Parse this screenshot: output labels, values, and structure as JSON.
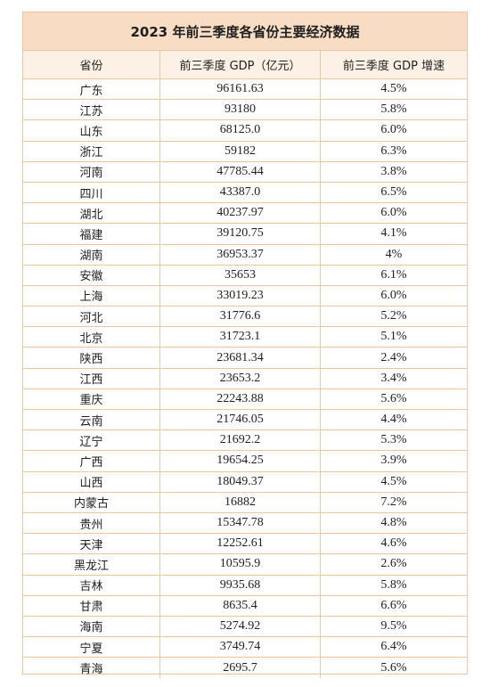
{
  "chart_data": {
    "type": "table",
    "title": "2023 年前三季度各省份主要经济数据",
    "columns": [
      "省份",
      "前三季度 GDP（亿元）",
      "前三季度 GDP 增速"
    ],
    "rows": [
      [
        "广东",
        "96161.63",
        "4.5%"
      ],
      [
        "江苏",
        "93180",
        "5.8%"
      ],
      [
        "山东",
        "68125.0",
        "6.0%"
      ],
      [
        "浙江",
        "59182",
        "6.3%"
      ],
      [
        "河南",
        "47785.44",
        "3.8%"
      ],
      [
        "四川",
        "43387.0",
        "6.5%"
      ],
      [
        "湖北",
        "40237.97",
        "6.0%"
      ],
      [
        "福建",
        "39120.75",
        "4.1%"
      ],
      [
        "湖南",
        "36953.37",
        "4%"
      ],
      [
        "安徽",
        "35653",
        "6.1%"
      ],
      [
        "上海",
        "33019.23",
        "6.0%"
      ],
      [
        "河北",
        "31776.6",
        "5.2%"
      ],
      [
        "北京",
        "31723.1",
        "5.1%"
      ],
      [
        "陕西",
        "23681.34",
        "2.4%"
      ],
      [
        "江西",
        "23653.2",
        "3.4%"
      ],
      [
        "重庆",
        "22243.88",
        "5.6%"
      ],
      [
        "云南",
        "21746.05",
        "4.4%"
      ],
      [
        "辽宁",
        "21692.2",
        "5.3%"
      ],
      [
        "广西",
        "19654.25",
        "3.9%"
      ],
      [
        "山西",
        "18049.37",
        "4.5%"
      ],
      [
        "内蒙古",
        "16882",
        "7.2%"
      ],
      [
        "贵州",
        "15347.78",
        "4.8%"
      ],
      [
        "天津",
        "12252.61",
        "4.6%"
      ],
      [
        "黑龙江",
        "10595.9",
        "2.6%"
      ],
      [
        "吉林",
        "9935.68",
        "5.8%"
      ],
      [
        "甘肃",
        "8635.4",
        "6.6%"
      ],
      [
        "海南",
        "5274.92",
        "9.5%"
      ],
      [
        "宁夏",
        "3749.74",
        "6.4%"
      ],
      [
        "青海",
        "2695.7",
        "5.6%"
      ]
    ]
  },
  "colors": {
    "title_bg": "#f9dcc4",
    "header_bg": "#fdf1e6",
    "border": "#efc59f"
  }
}
